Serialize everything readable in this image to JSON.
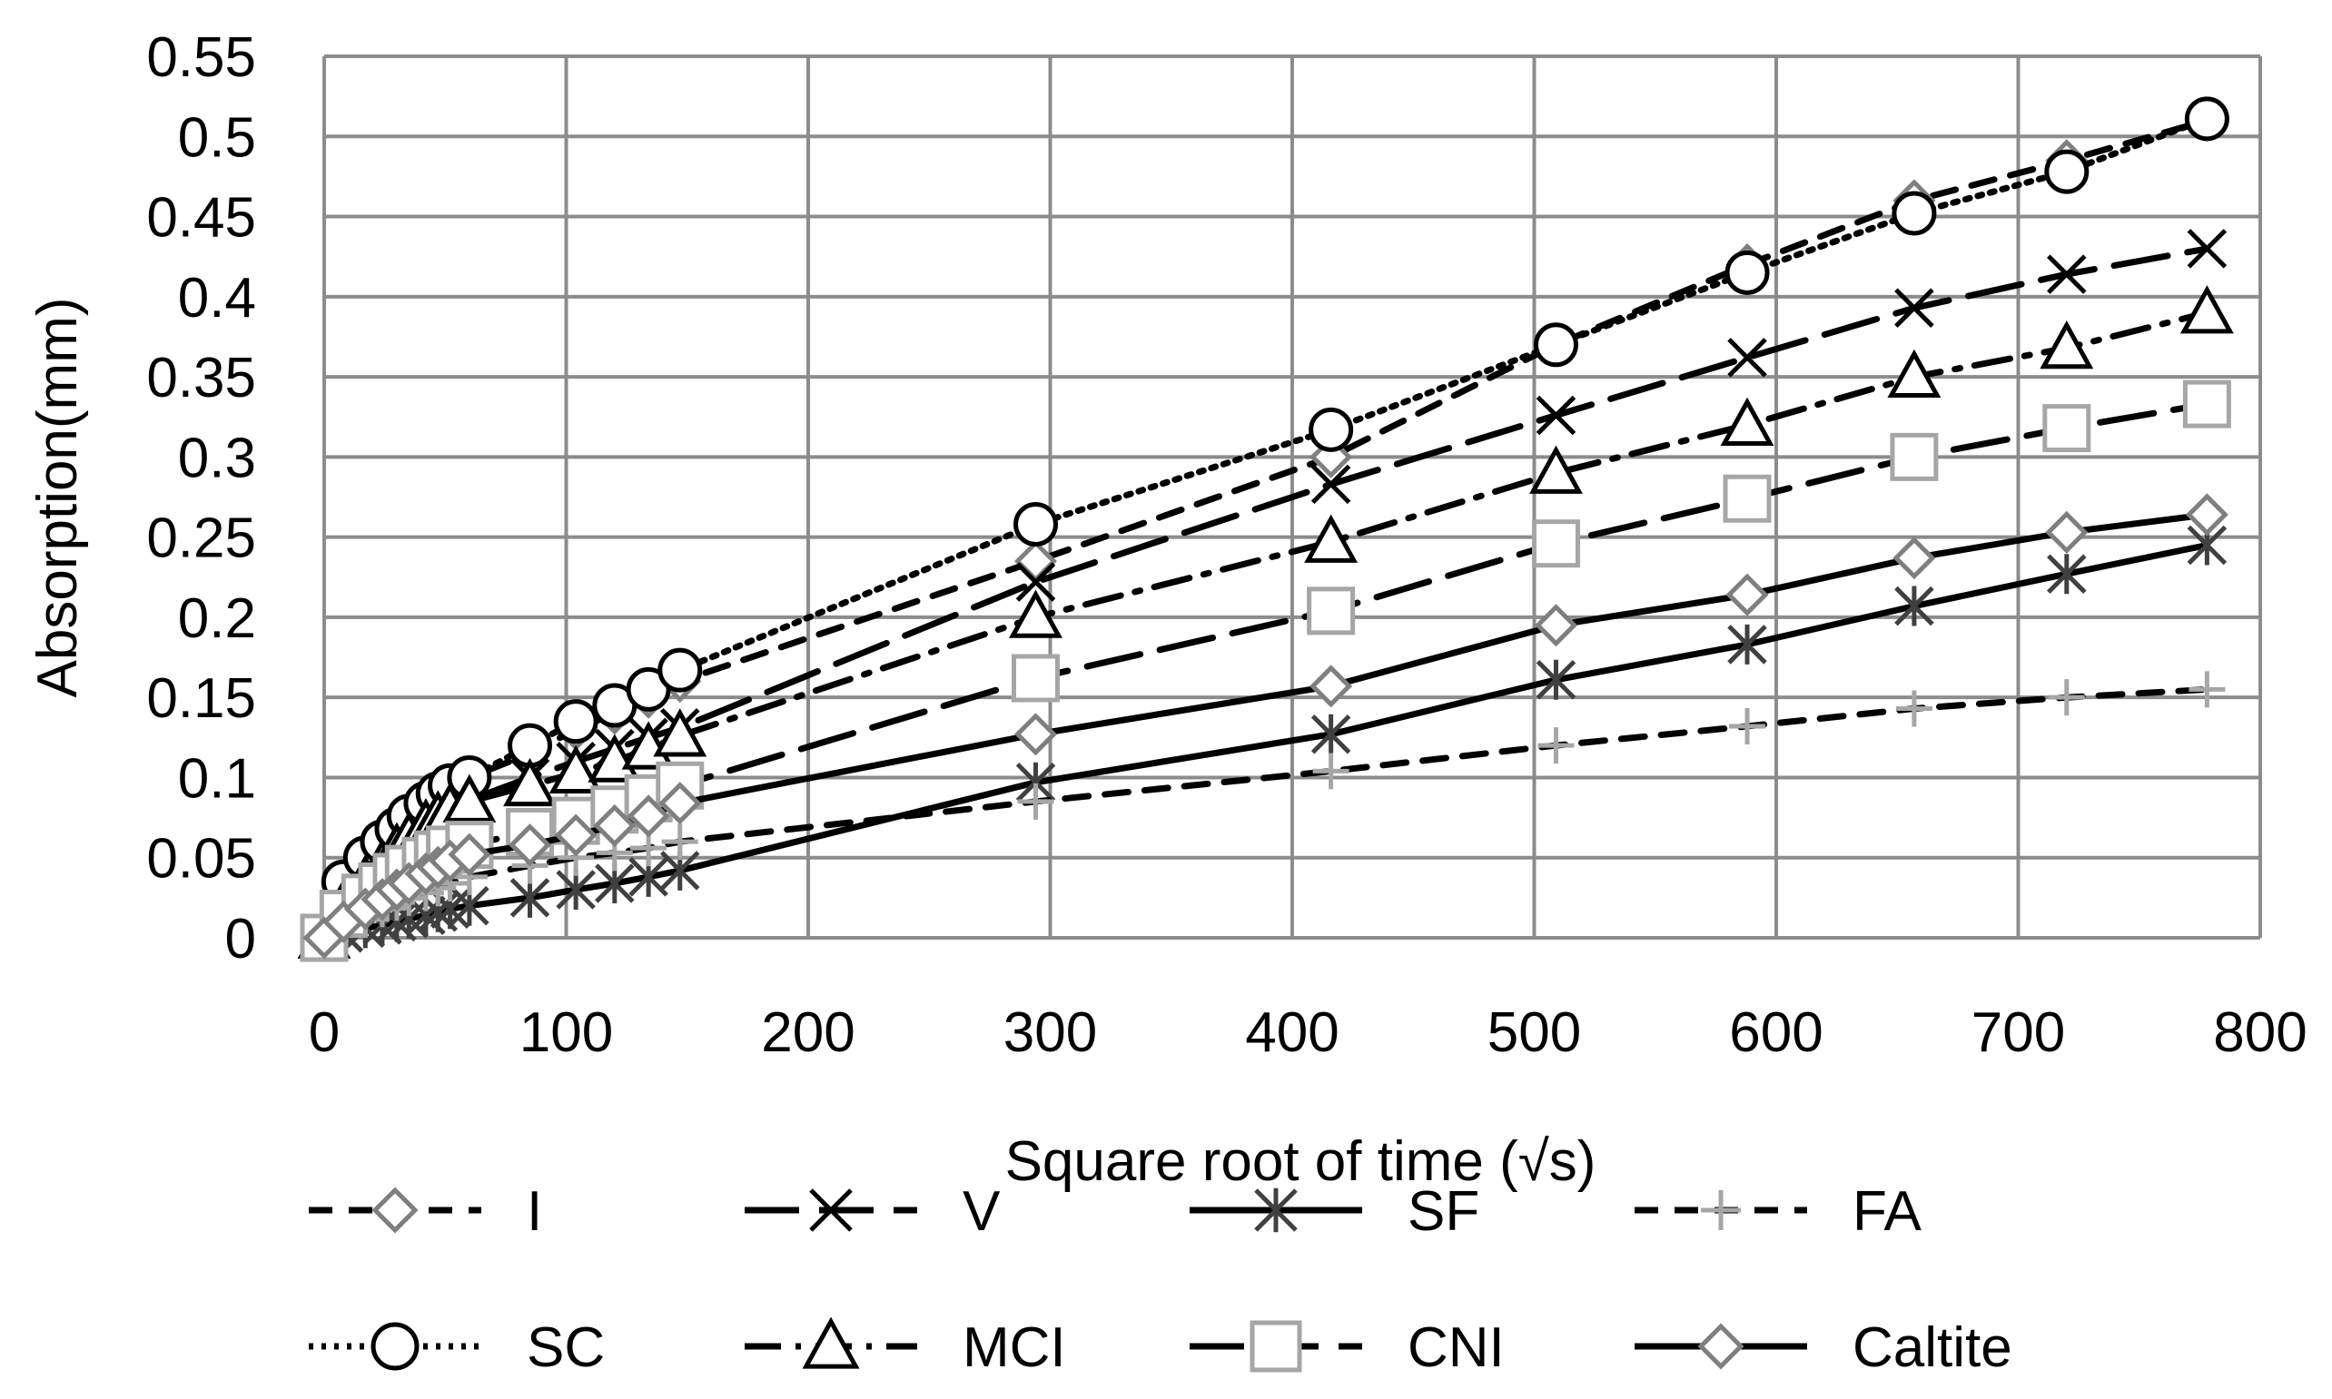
{
  "chart_data": {
    "type": "line",
    "title": "",
    "xlabel": "Square root of time (√s)",
    "ylabel": "Absorption(mm)",
    "xlim": [
      0,
      800
    ],
    "ylim": [
      0,
      0.55
    ],
    "x_ticks": [
      0,
      100,
      200,
      300,
      400,
      500,
      600,
      700,
      800
    ],
    "y_ticks": [
      0,
      0.05,
      0.1,
      0.15,
      0.2,
      0.25,
      0.3,
      0.35,
      0.4,
      0.45,
      0.5,
      0.55
    ],
    "x_tick_labels": [
      "0",
      "100",
      "200",
      "300",
      "400",
      "500",
      "600",
      "700",
      "800"
    ],
    "y_tick_labels": [
      "0",
      "0.05",
      "0.1",
      "0.15",
      "0.2",
      "0.25",
      "0.3",
      "0.35",
      "0.4",
      "0.45",
      "0.5",
      "0.55"
    ],
    "grid": true,
    "legend_position": "bottom",
    "x": [
      0,
      8,
      17,
      24,
      30,
      35,
      42,
      47,
      52,
      60,
      85,
      104,
      120,
      134,
      147,
      294,
      416,
      509,
      588,
      657,
      720,
      778
    ],
    "series": [
      {
        "name": "I",
        "marker": "diamond",
        "line": "dash",
        "color": "#000000",
        "marker_color": "#7f7f7f",
        "values": [
          0,
          0.03,
          0.045,
          0.055,
          0.063,
          0.07,
          0.078,
          0.084,
          0.09,
          0.1,
          0.115,
          0.13,
          0.14,
          0.15,
          0.16,
          0.235,
          0.3,
          0.37,
          0.42,
          0.46,
          0.485,
          0.51
        ]
      },
      {
        "name": "V",
        "marker": "x",
        "line": "longdash",
        "color": "#000000",
        "marker_color": "#000000",
        "values": [
          0,
          0.025,
          0.037,
          0.045,
          0.053,
          0.06,
          0.066,
          0.071,
          0.077,
          0.086,
          0.1,
          0.11,
          0.118,
          0.125,
          0.131,
          0.222,
          0.283,
          0.326,
          0.362,
          0.393,
          0.414,
          0.43
        ]
      },
      {
        "name": "SF",
        "marker": "asterisk",
        "line": "solid",
        "color": "#000000",
        "marker_color": "#404040",
        "values": [
          0,
          0.003,
          0.006,
          0.008,
          0.01,
          0.012,
          0.014,
          0.016,
          0.018,
          0.02,
          0.025,
          0.03,
          0.034,
          0.038,
          0.042,
          0.097,
          0.127,
          0.161,
          0.183,
          0.207,
          0.227,
          0.245
        ]
      },
      {
        "name": "FA",
        "marker": "plus",
        "line": "dash",
        "color": "#000000",
        "marker_color": "#a6a6a6",
        "values": [
          0,
          0.008,
          0.013,
          0.018,
          0.022,
          0.025,
          0.028,
          0.031,
          0.034,
          0.038,
          0.045,
          0.05,
          0.053,
          0.056,
          0.06,
          0.085,
          0.104,
          0.12,
          0.132,
          0.143,
          0.15,
          0.155
        ]
      },
      {
        "name": "SC",
        "marker": "circle",
        "line": "dot",
        "color": "#000000",
        "marker_color": "#000000",
        "values": [
          0,
          0.035,
          0.05,
          0.06,
          0.068,
          0.076,
          0.084,
          0.09,
          0.095,
          0.1,
          0.12,
          0.135,
          0.145,
          0.155,
          0.167,
          0.258,
          0.317,
          0.37,
          0.415,
          0.452,
          0.478,
          0.511
        ]
      },
      {
        "name": "MCI",
        "marker": "triangle",
        "line": "dashdot",
        "color": "#000000",
        "marker_color": "#000000",
        "values": [
          0,
          0.02,
          0.035,
          0.045,
          0.055,
          0.062,
          0.07,
          0.075,
          0.08,
          0.085,
          0.095,
          0.103,
          0.11,
          0.118,
          0.126,
          0.2,
          0.247,
          0.29,
          0.32,
          0.35,
          0.368,
          0.39
        ]
      },
      {
        "name": "CNI",
        "marker": "square",
        "line": "longdash",
        "color": "#000000",
        "marker_color": "#a6a6a6",
        "values": [
          0,
          0.015,
          0.025,
          0.032,
          0.038,
          0.043,
          0.048,
          0.052,
          0.055,
          0.058,
          0.066,
          0.073,
          0.08,
          0.087,
          0.095,
          0.162,
          0.204,
          0.246,
          0.274,
          0.3,
          0.318,
          0.333
        ]
      },
      {
        "name": "Caltite",
        "marker": "diamond",
        "line": "solid",
        "color": "#000000",
        "marker_color": "#7f7f7f",
        "values": [
          0,
          0.01,
          0.018,
          0.024,
          0.03,
          0.034,
          0.04,
          0.044,
          0.048,
          0.052,
          0.058,
          0.064,
          0.07,
          0.076,
          0.084,
          0.127,
          0.157,
          0.195,
          0.214,
          0.237,
          0.253,
          0.264
        ]
      }
    ]
  }
}
